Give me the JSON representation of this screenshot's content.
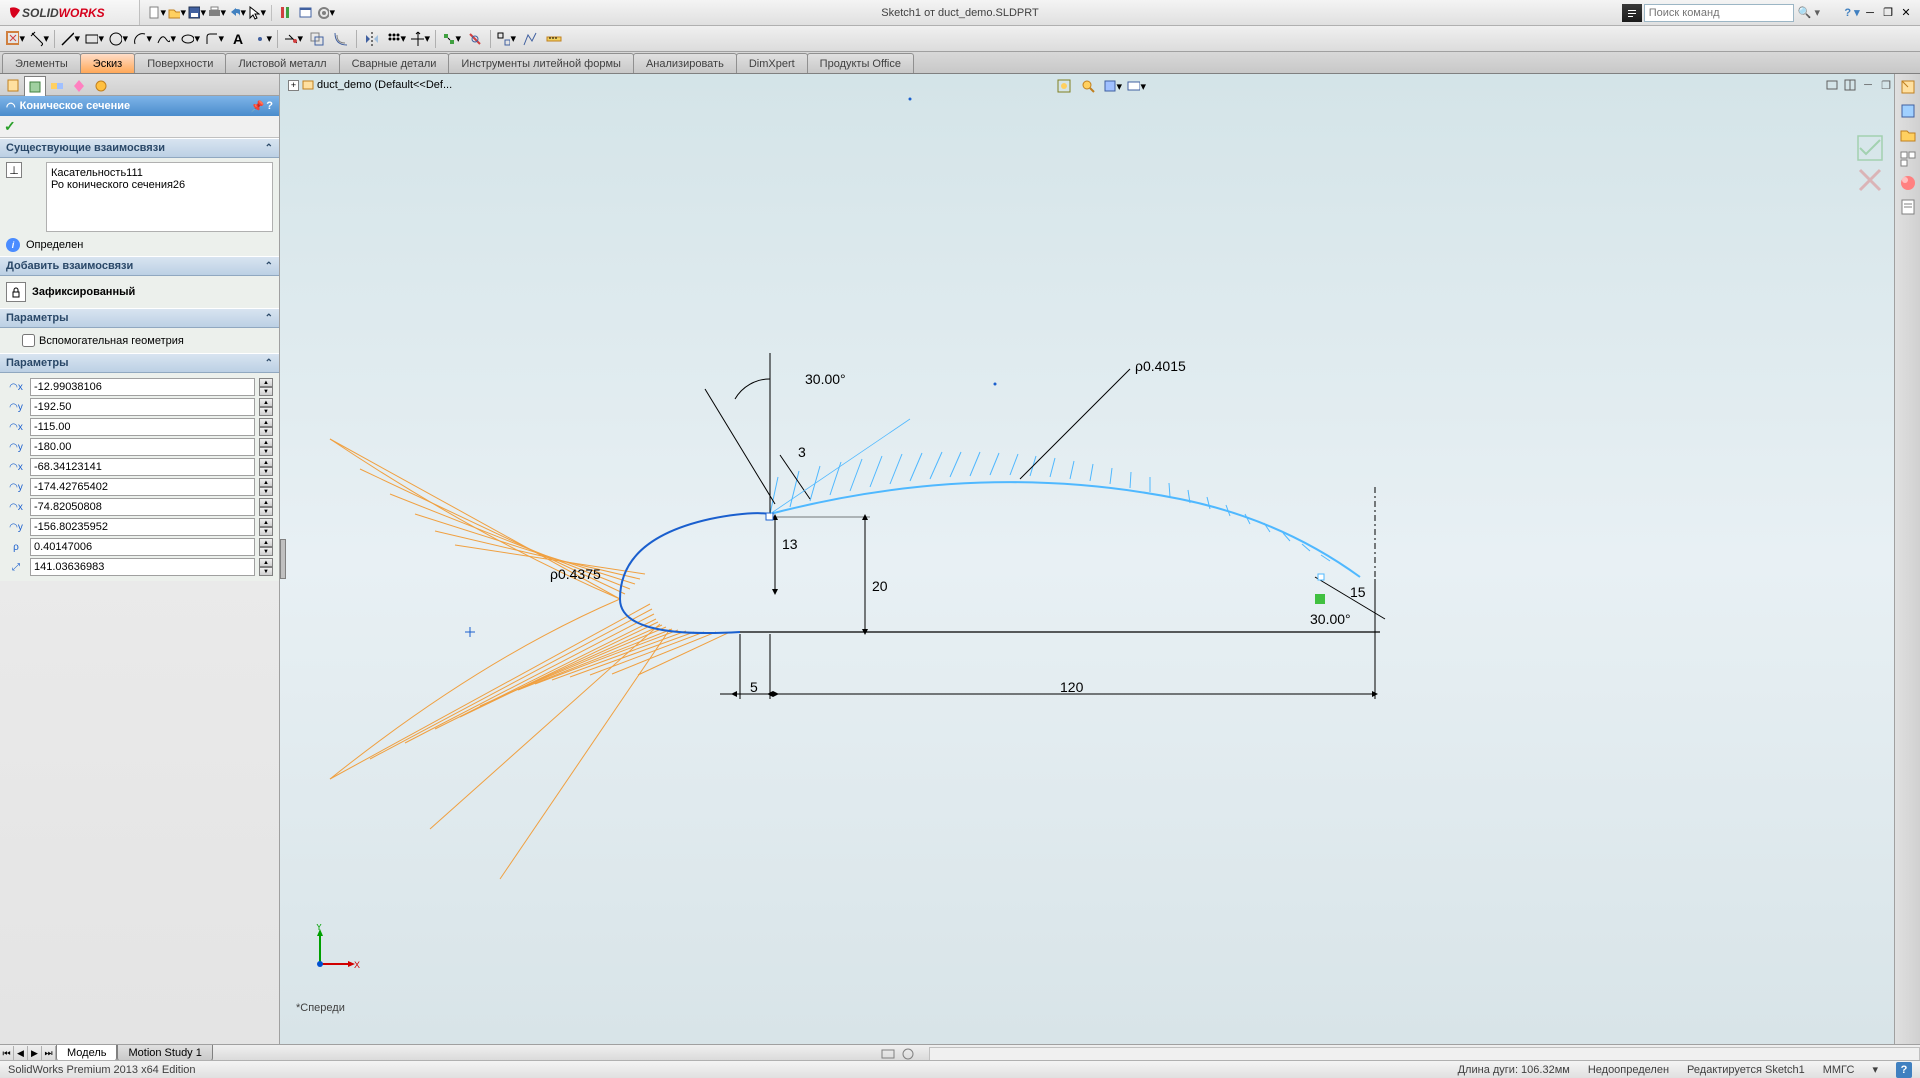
{
  "app": {
    "logo_ds": "DS",
    "logo_s": "SOLID",
    "logo_w": "WORKS"
  },
  "titlebar": {
    "doc_title": "Sketch1 от duct_demo.SLDPRT",
    "search_placeholder": "Поиск команд"
  },
  "tabs": {
    "items": [
      {
        "label": "Элементы",
        "active": false
      },
      {
        "label": "Эскиз",
        "active": true
      },
      {
        "label": "Поверхности",
        "active": false
      },
      {
        "label": "Листовой металл",
        "active": false
      },
      {
        "label": "Сварные детали",
        "active": false
      },
      {
        "label": "Инструменты литейной формы",
        "active": false
      },
      {
        "label": "Анализировать",
        "active": false
      },
      {
        "label": "DimXpert",
        "active": false
      },
      {
        "label": "Продукты Office",
        "active": false
      }
    ]
  },
  "tree": {
    "root": "duct_demo  (Default<<Def..."
  },
  "pm": {
    "title": "Коническое сечение",
    "relations_hdr": "Существующие взаимосвязи",
    "rel1": "Касательность111",
    "rel2": "Ро конического сечения26",
    "status": "Определен",
    "add_rel_hdr": "Добавить взаимосвязи",
    "fixed_label": "Зафиксированный",
    "params_hdr": "Параметры",
    "aux_geom": "Вспомогательная геометрия",
    "params2_hdr": "Параметры",
    "params": [
      "-12.99038106",
      "-192.50",
      "-115.00",
      "-180.00",
      "-68.34123141",
      "-174.42765402",
      "-74.82050808",
      "-156.80235952",
      "0.40147006",
      "141.03636983"
    ]
  },
  "canvas": {
    "view_name": "*Спереди",
    "dims": {
      "angle_top": "30.00°",
      "rho_right": "ρ0.4015",
      "dim_3": "3",
      "dim_13": "13",
      "dim_20": "20",
      "rho_left": "ρ0.4375",
      "dim_5": "5",
      "dim_120": "120",
      "dim_15": "15",
      "angle_br": "30.00°"
    },
    "axes": {
      "y": "Y",
      "x": "X"
    }
  },
  "bottom_tabs": {
    "model": "Модель",
    "motion": "Motion Study 1"
  },
  "status": {
    "edition": "SolidWorks Premium 2013 x64 Edition",
    "arc_len": "Длина дуги: 106.32мм",
    "under_def": "Недоопределен",
    "editing": "Редактируется Sketch1",
    "units": "ММГС"
  },
  "colors": {
    "blue_curve": "#1a5fce",
    "cyan_curve": "#4fb8ff",
    "orange": "#f0a040",
    "dim_text": "#000000",
    "canvas_bg_top": "#d4e4e8",
    "canvas_bg_bot": "#d8e4e8",
    "accent": "#ff7800"
  }
}
